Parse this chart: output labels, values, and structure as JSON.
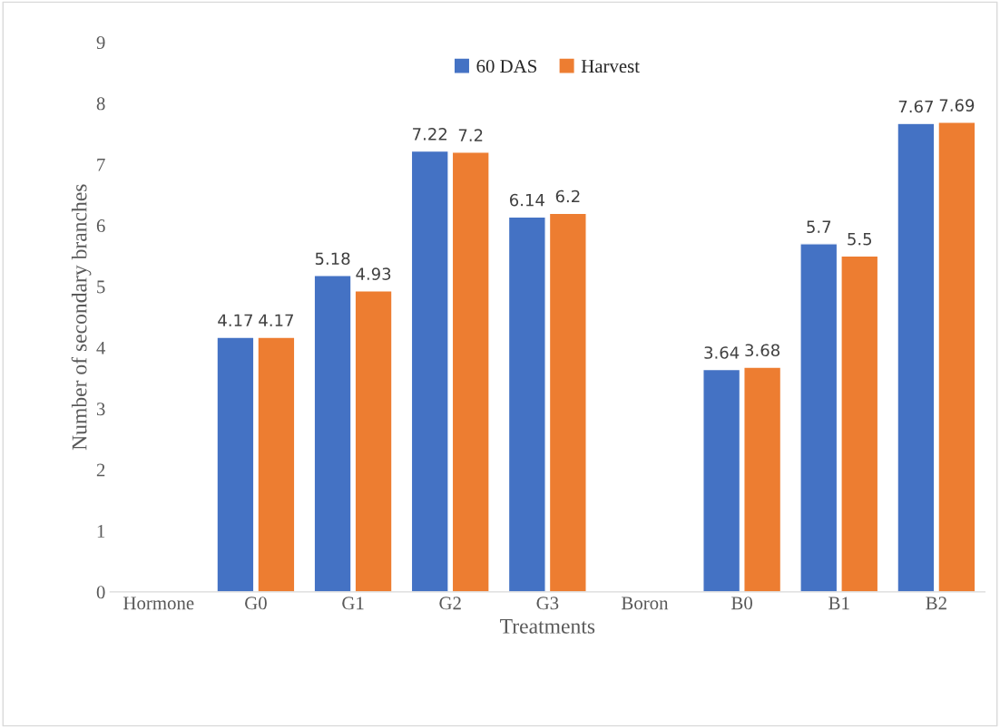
{
  "chart_data": {
    "type": "bar",
    "xlabel": "Treatments",
    "ylabel": "Number of secondary branches",
    "categories": [
      "Hormone",
      "G0",
      "G1",
      "G2",
      "G3",
      "Boron",
      "B0",
      "B1",
      "B2"
    ],
    "series": [
      {
        "name": "60 DAS",
        "color": "#4472c4",
        "values": [
          null,
          4.17,
          5.18,
          7.22,
          6.14,
          null,
          3.64,
          5.7,
          7.67
        ]
      },
      {
        "name": "Harvest",
        "color": "#ed7d31",
        "values": [
          null,
          4.17,
          4.93,
          7.2,
          6.2,
          null,
          3.68,
          5.5,
          7.69
        ]
      }
    ],
    "ylim": [
      0,
      9
    ],
    "yticks": [
      0,
      1,
      2,
      3,
      4,
      5,
      6,
      7,
      8,
      9
    ],
    "data_labels": true,
    "legend": "top",
    "grid": false
  }
}
